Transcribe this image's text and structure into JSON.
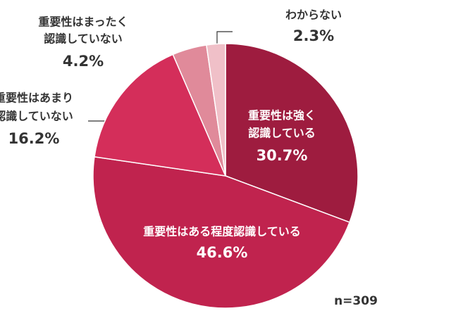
{
  "chart_data": {
    "type": "pie",
    "categories": [
      [
        "重要性は強く",
        "認識している"
      ],
      [
        "重要性はある程度認識している"
      ],
      [
        "重要性はあまり",
        "認識していない"
      ],
      [
        "重要性はまったく",
        "認識していない"
      ],
      [
        "わからない"
      ]
    ],
    "values": [
      30.7,
      46.6,
      16.2,
      4.2,
      2.3
    ],
    "value_labels": [
      "30.7%",
      "46.6%",
      "16.2%",
      "4.2%",
      "2.3%"
    ],
    "colors": [
      "#9e1c3f",
      "#c0234e",
      "#d42e5a",
      "#e08a9a",
      "#f0c0c8"
    ],
    "note": "n=309"
  }
}
